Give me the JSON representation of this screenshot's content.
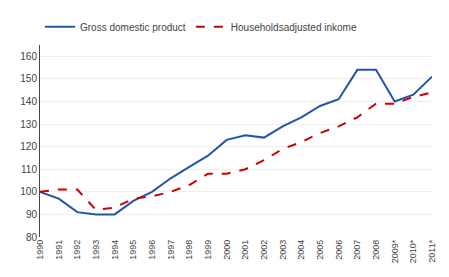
{
  "chart_data": {
    "type": "line",
    "categories": [
      "1990",
      "1991",
      "1992",
      "1993",
      "1994",
      "1995",
      "1996",
      "1997",
      "1998",
      "1999",
      "2000",
      "2001",
      "2002",
      "2003",
      "2004",
      "2005",
      "2006",
      "2007",
      "2008",
      "2009*",
      "2010*",
      "2011*"
    ],
    "series": [
      {
        "name": "Gross domestic product",
        "color": "#2255aa",
        "line_style": "solid",
        "values": [
          100,
          97,
          91,
          90,
          90,
          96,
          100,
          106,
          111,
          116,
          123,
          125,
          124,
          129,
          133,
          138,
          141,
          154,
          154,
          140,
          143,
          151
        ]
      },
      {
        "name": "Householdsadjusted inkome",
        "color": "#cc0000",
        "line_style": "dashed",
        "values": [
          100,
          101,
          101,
          92,
          93,
          97,
          98,
          100,
          103,
          108,
          108,
          110,
          114,
          119,
          122,
          126,
          129,
          133,
          139,
          139,
          142,
          144
        ]
      }
    ],
    "ylim": [
      80,
      165
    ],
    "yticks": [
      80,
      90,
      100,
      110,
      120,
      130,
      140,
      150,
      160
    ],
    "grid": true,
    "legend": "top"
  }
}
